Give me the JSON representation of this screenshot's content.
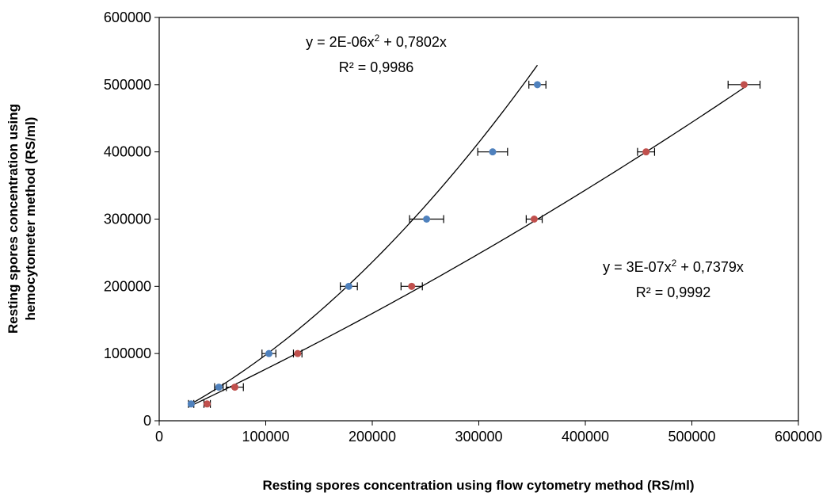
{
  "chart_data": {
    "type": "scatter",
    "title": "",
    "xlabel": "Resting spores concentration using flow cytometry method (RS/ml)",
    "ylabel_line1": "Resting spores concentration using",
    "ylabel_line2": "hemocytometer method (RS/ml)",
    "xlim": [
      0,
      600000
    ],
    "ylim": [
      0,
      600000
    ],
    "x_ticks": [
      0,
      100000,
      200000,
      300000,
      400000,
      500000,
      600000
    ],
    "y_ticks": [
      0,
      100000,
      200000,
      300000,
      400000,
      500000,
      600000
    ],
    "x_tick_labels": [
      "0",
      "100000",
      "200000",
      "300000",
      "400000",
      "500000",
      "600000"
    ],
    "y_tick_labels": [
      "0",
      "100000",
      "200000",
      "300000",
      "400000",
      "500000",
      "600000"
    ],
    "grid": false,
    "legend": "none",
    "series": [
      {
        "color": "#4F81BD",
        "x": [
          30000,
          56000,
          103000,
          178000,
          251000,
          313000,
          355000
        ],
        "y": [
          25000,
          50000,
          100000,
          200000,
          300000,
          400000,
          500000
        ],
        "x_err": [
          2500,
          4000,
          6500,
          8000,
          16000,
          14000,
          8000
        ],
        "trendline": {
          "a": 2e-06,
          "b": 0.7802,
          "x_from": 28000,
          "x_to": 355000
        }
      },
      {
        "color": "#C0504D",
        "x": [
          45000,
          71000,
          130000,
          237000,
          352000,
          457000,
          549000
        ],
        "y": [
          25000,
          50000,
          100000,
          200000,
          300000,
          400000,
          500000
        ],
        "x_err": [
          3000,
          8000,
          4000,
          10000,
          7500,
          8000,
          15000
        ],
        "trendline": {
          "a": 3e-07,
          "b": 0.7379,
          "x_from": 28000,
          "x_to": 549000
        }
      }
    ],
    "annotations": [
      {
        "line1_pre": "y = 2E-06x",
        "line1_sup": "2",
        "line1_post": " + 0,7802x",
        "line2": "R² = 0,9986"
      },
      {
        "line1_pre": "y = 3E-07x",
        "line1_sup": "2",
        "line1_post": " + 0,7379x",
        "line2": "R² = 0,9992"
      }
    ]
  }
}
